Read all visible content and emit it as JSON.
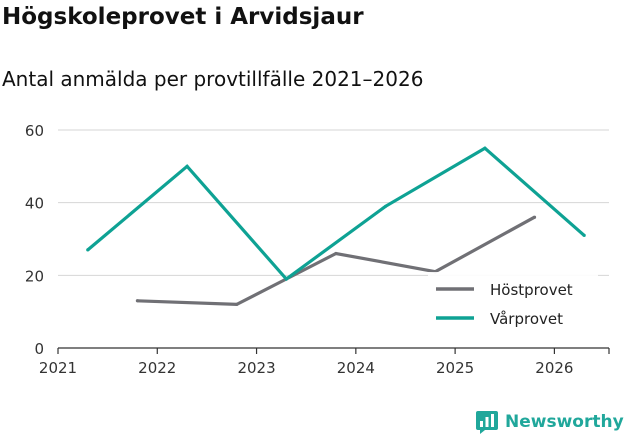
{
  "header": {
    "title": "Högskoleprovet i Arvidsjaur",
    "subtitle": "Antal anmälda per provtillfälle 2021–2026"
  },
  "chart_data": {
    "type": "line",
    "title": "Högskoleprovet i Arvidsjaur",
    "subtitle": "Antal anmälda per provtillfälle 2021–2026",
    "xlabel": "",
    "ylabel": "",
    "xlim": [
      2021,
      2026.55
    ],
    "ylim": [
      0,
      60
    ],
    "yticks": [
      "0",
      "20",
      "40",
      "60"
    ],
    "xticks": [
      "2021",
      "2022",
      "2023",
      "2024",
      "2025",
      "2026"
    ],
    "grid": true,
    "legend_position": "bottom-right",
    "series": [
      {
        "name": "Höstprovet",
        "color": "#707075",
        "points": [
          {
            "x": 2021.8,
            "y": 13
          },
          {
            "x": 2022.8,
            "y": 12
          },
          {
            "x": 2023.3,
            "y": 19
          },
          {
            "x": 2023.8,
            "y": 26
          },
          {
            "x": 2024.8,
            "y": 21
          },
          {
            "x": 2025.8,
            "y": 36
          }
        ]
      },
      {
        "name": "Vårprovet",
        "color": "#0ea294",
        "points": [
          {
            "x": 2021.3,
            "y": 27
          },
          {
            "x": 2022.3,
            "y": 50
          },
          {
            "x": 2023.3,
            "y": 19
          },
          {
            "x": 2024.3,
            "y": 39
          },
          {
            "x": 2025.3,
            "y": 55
          },
          {
            "x": 2026.3,
            "y": 31
          }
        ]
      }
    ]
  },
  "brand": {
    "name": "Newsworthy",
    "icon": "bar-chart-icon",
    "color": "#20a79b"
  }
}
